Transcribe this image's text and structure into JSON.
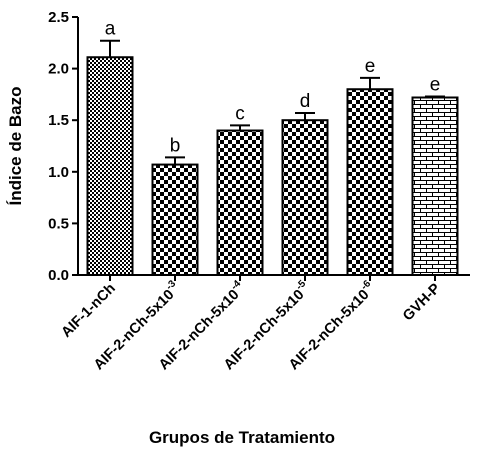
{
  "chart_data": {
    "type": "bar",
    "xlabel": "Grupos de Tratamiento",
    "ylabel": "Índice de Bazo",
    "ylim": [
      0,
      2.5
    ],
    "yticks": [
      "0.0",
      "0.5",
      "1.0",
      "1.5",
      "2.0",
      "2.5"
    ],
    "categories": [
      {
        "base": "AIF-1-nCh",
        "exp": ""
      },
      {
        "base": "AIF-2-nCh-5x10",
        "exp": "-3"
      },
      {
        "base": "AIF-2-nCh-5x10",
        "exp": "-4"
      },
      {
        "base": "AIF-2-nCh-5x10",
        "exp": "-5"
      },
      {
        "base": "AIF-2-nCh-5x10",
        "exp": "-6"
      },
      {
        "base": "GVH-P",
        "exp": ""
      }
    ],
    "values": [
      2.11,
      1.07,
      1.4,
      1.5,
      1.8,
      1.72
    ],
    "errors": [
      0.16,
      0.07,
      0.05,
      0.07,
      0.11,
      0.01
    ],
    "letters": [
      "a",
      "b",
      "c",
      "d",
      "e",
      "e"
    ],
    "patterns": [
      "fine-dots",
      "checker",
      "checker",
      "checker",
      "checker",
      "brick"
    ],
    "grid": false,
    "legend": "none",
    "colors": {
      "bar_fill": "#000000",
      "background": "#ffffff"
    }
  }
}
